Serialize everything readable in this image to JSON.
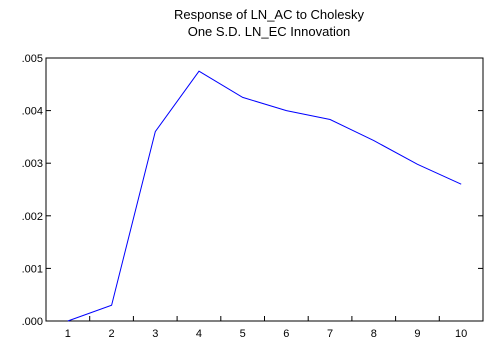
{
  "chart_data": {
    "type": "line",
    "title_lines": [
      "Response of LN_AC to Cholesky",
      "One S.D. LN_EC Innovation"
    ],
    "categories": [
      "1",
      "2",
      "3",
      "4",
      "5",
      "6",
      "7",
      "8",
      "9",
      "10"
    ],
    "series": [
      {
        "values": [
          0.0,
          0.0003,
          0.0036,
          0.00475,
          0.00425,
          0.004,
          0.00383,
          0.00343,
          0.00298,
          0.0026
        ],
        "color": "#0000ff"
      }
    ],
    "y_ticks": [
      ".000",
      ".001",
      ".002",
      ".003",
      ".004",
      ".005"
    ],
    "y_tick_values": [
      0,
      0.001,
      0.002,
      0.003,
      0.004,
      0.005
    ],
    "ylim": [
      0,
      0.005
    ],
    "grid": false,
    "xlabel": "",
    "ylabel": ""
  }
}
